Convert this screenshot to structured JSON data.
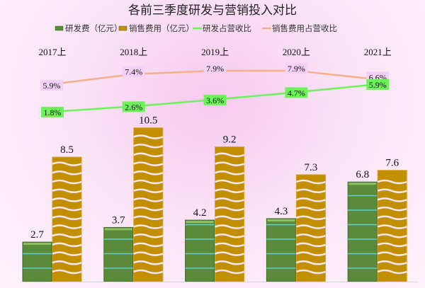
{
  "chart_data": {
    "type": "bar",
    "title": "各前三季度研发与营销投入对比",
    "categories": [
      "2017上",
      "2018上",
      "2019上",
      "2020上",
      "2021上"
    ],
    "series": [
      {
        "name": "研发费（亿元）",
        "kind": "bar",
        "color": "#5b8a3a",
        "values": [
          2.7,
          3.7,
          4.2,
          4.3,
          6.8
        ],
        "labels": [
          "2.7",
          "3.7",
          "4.2",
          "4.3",
          "6.8"
        ]
      },
      {
        "name": "销售费用（亿元）",
        "kind": "bar",
        "color": "#c18f00",
        "values": [
          8.5,
          10.5,
          9.2,
          7.3,
          7.6
        ],
        "labels": [
          "8.5",
          "10.5",
          "9.2",
          "7.3",
          "7.6"
        ]
      },
      {
        "name": "研发占营收比",
        "kind": "line",
        "color": "#6cf25a",
        "values": [
          1.8,
          2.6,
          3.6,
          4.7,
          5.9
        ],
        "labels": [
          "1.8%",
          "2.6%",
          "3.6%",
          "4.7%",
          "5.9%"
        ]
      },
      {
        "name": "销售费用占营收比",
        "kind": "line",
        "color": "#f4b08a",
        "values": [
          5.9,
          7.4,
          7.9,
          7.9,
          6.6
        ],
        "labels": [
          "5.9%",
          "7.4%",
          "7.9%",
          "7.9%",
          "6.6%"
        ]
      }
    ],
    "legend": "top",
    "category_axis_position": "top",
    "grid": false
  }
}
